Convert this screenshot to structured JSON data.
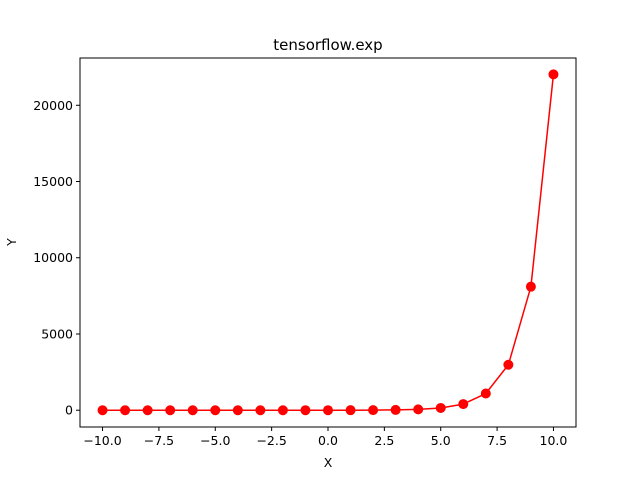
{
  "chart_data": {
    "type": "line",
    "title": "tensorflow.exp",
    "xlabel": "X",
    "ylabel": "Y",
    "xlim": [
      -11,
      11
    ],
    "ylim": [
      -1100,
      23100
    ],
    "xticks": [
      -10.0,
      -7.5,
      -5.0,
      -2.5,
      0.0,
      2.5,
      5.0,
      7.5,
      10.0
    ],
    "xtick_labels": [
      "−10.0",
      "−7.5",
      "−5.0",
      "−2.5",
      "0.0",
      "2.5",
      "5.0",
      "7.5",
      "10.0"
    ],
    "yticks": [
      0,
      5000,
      10000,
      15000,
      20000
    ],
    "ytick_labels": [
      "0",
      "5000",
      "10000",
      "15000",
      "20000"
    ],
    "grid": false,
    "series": [
      {
        "color": "#ff0000",
        "marker": "circle",
        "x": [
          -10,
          -9,
          -8,
          -7,
          -6,
          -5,
          -4,
          -3,
          -2,
          -1,
          0,
          1,
          2,
          3,
          4,
          5,
          6,
          7,
          8,
          9,
          10
        ],
        "y": [
          4.54e-05,
          0.0001234,
          0.0003355,
          0.000912,
          0.002479,
          0.006738,
          0.018316,
          0.049787,
          0.135335,
          0.367879,
          1.0,
          2.718282,
          7.389056,
          20.085537,
          54.59815,
          148.413159,
          403.428793,
          1096.633158,
          2980.957987,
          8103.083928,
          22026.465795
        ]
      }
    ]
  }
}
